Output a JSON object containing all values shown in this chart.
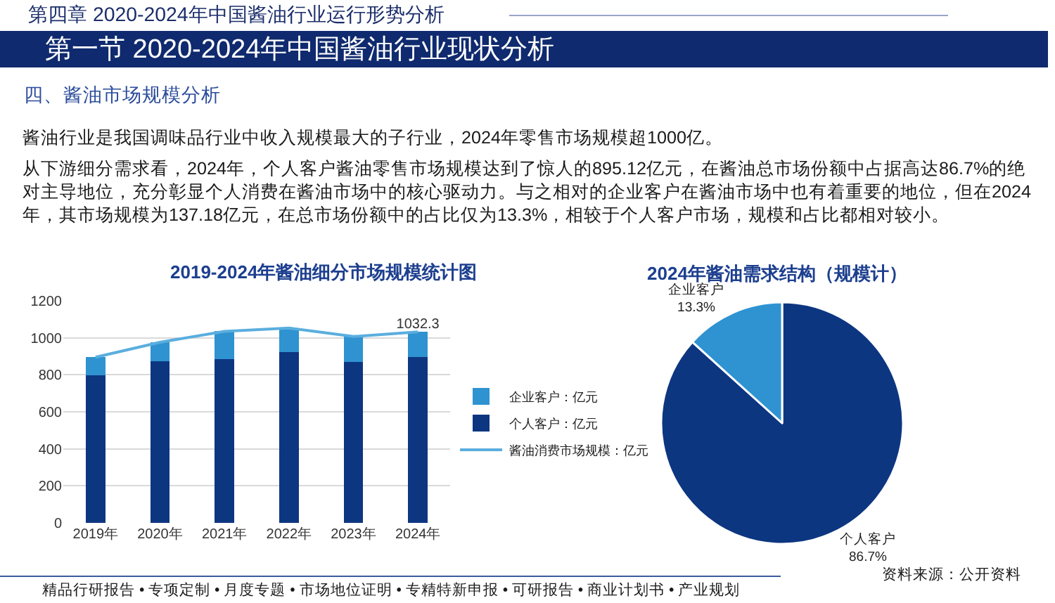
{
  "chart_data": [
    {
      "type": "other",
      "title": "第四章 2020-2024年中国酱油行业运行形势分析",
      "subtitle": "第一节 2020-2024年中国酱油行业现状分析",
      "annotations": [
        "四、酱油市场规模分析",
        "酱油行业是我国调味品行业中收入规模最大的子行业，2024年零售市场规模超1000亿。",
        "从下游细分需求看，2024年，个人客户酱油零售市场规模达到了惊人的895.12亿元，在酱油总市场份额中占据高达86.7%的绝对主导地位，充分彰显个人消费在酱油市场中的核心驱动力。与之相对的企业客户在酱油市场中也有着重要的地位，但在2024年，其市场规模为137.18亿元，在总市场份额中的占比仅为13.3%，相较于个人客户市场，规模和占比都相对较小。",
        "精品行研报告 • 专项定制 • 月度专题 • 市场地位证明 • 专精特新申报 • 可研报告 • 商业计划书 • 产业规划",
        "资料来源：公开资料"
      ]
    },
    {
      "type": "bar",
      "title": "2019-2024年酱油细分市场规模统计图",
      "categories": [
        "2019年",
        "2020年",
        "2021年",
        "2022年",
        "2023年",
        "2024年"
      ],
      "stacked": true,
      "series": [
        {
          "name": "个人客户：亿元",
          "color": "#0d3681",
          "values": [
            796,
            875,
            885,
            923,
            870,
            895.12
          ]
        },
        {
          "name": "企业客户：亿元",
          "color": "#2f93d1",
          "values": [
            99,
            101,
            150,
            130,
            137,
            137.18
          ]
        },
        {
          "name": "酱油消费市场规模：亿元",
          "type": "line",
          "color": "#5aaede",
          "values": [
            895,
            976,
            1035,
            1053,
            1007,
            1032.3
          ],
          "value_labels": [
            null,
            null,
            null,
            null,
            null,
            "1032.3"
          ]
        }
      ],
      "ylim": [
        0,
        1200
      ],
      "yticks": [
        0,
        200,
        400,
        600,
        800,
        1000,
        1200
      ],
      "grid": "y",
      "legend": "right"
    },
    {
      "type": "pie",
      "title": "2024年酱油需求结构（规模计）",
      "categories": [
        "个人客户",
        "企业客户"
      ],
      "values": [
        86.7,
        13.3
      ],
      "value_labels": [
        "86.7%",
        "13.3%"
      ],
      "colors": [
        "#0d3681",
        "#2f93d1"
      ]
    }
  ]
}
